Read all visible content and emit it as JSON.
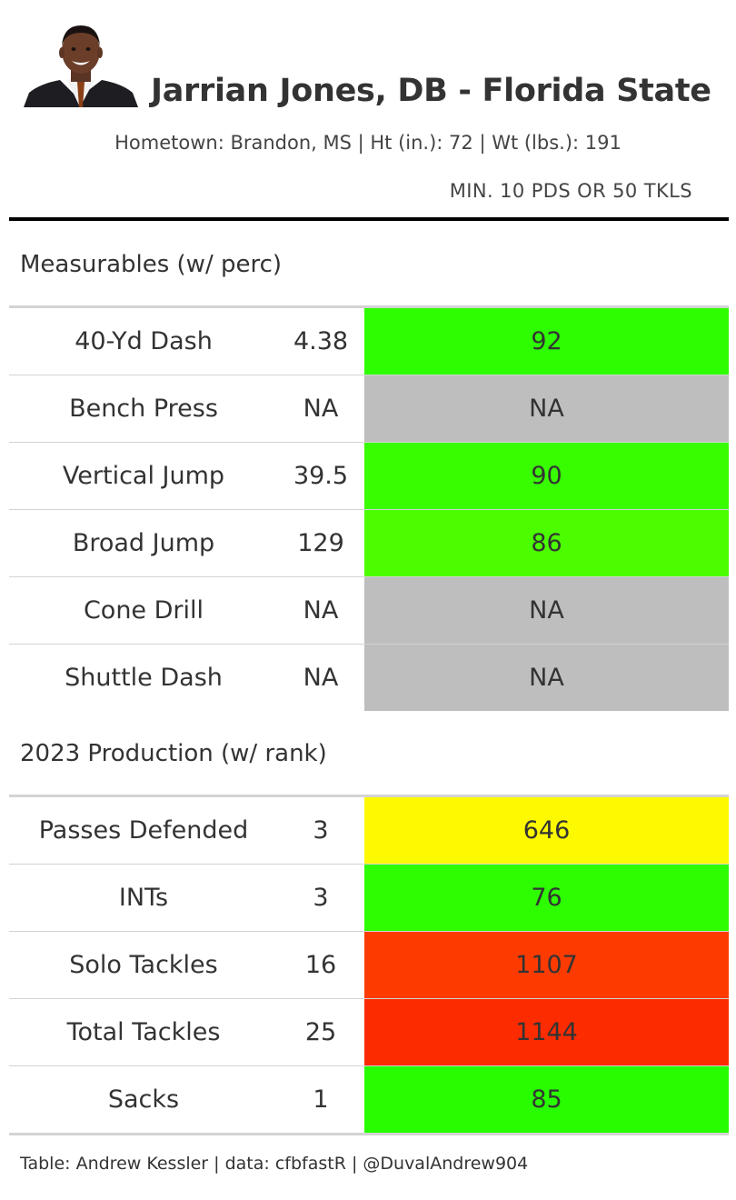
{
  "player": {
    "title": "Jarrian Jones, DB - Florida State",
    "subtitle": "Hometown: Brandon, MS | Ht (in.): 72 | Wt (lbs.): 191",
    "filter_note": "MIN. 10 PDS OR 50 TKLS",
    "photo_icon": "player-headshot"
  },
  "measurables": {
    "label": "Measurables (w/ perc)",
    "rows": [
      {
        "label": "40-Yd Dash",
        "value": "4.38",
        "metric": "92",
        "color": "#2dfd00"
      },
      {
        "label": "Bench Press",
        "value": "NA",
        "metric": "NA",
        "color": "#bebebe"
      },
      {
        "label": "Vertical Jump",
        "value": "39.5",
        "metric": "90",
        "color": "#38fd00"
      },
      {
        "label": "Broad Jump",
        "value": "129",
        "metric": "86",
        "color": "#4cfd00"
      },
      {
        "label": "Cone Drill",
        "value": "NA",
        "metric": "NA",
        "color": "#bebebe"
      },
      {
        "label": "Shuttle Dash",
        "value": "NA",
        "metric": "NA",
        "color": "#bebebe"
      }
    ]
  },
  "production": {
    "label": "2023 Production (w/ rank)",
    "rows": [
      {
        "label": "Passes Defended",
        "value": "3",
        "metric": "646",
        "color": "#fcf900"
      },
      {
        "label": "INTs",
        "value": "3",
        "metric": "76",
        "color": "#2dfd00"
      },
      {
        "label": "Solo Tackles",
        "value": "16",
        "metric": "1107",
        "color": "#fd3b00"
      },
      {
        "label": "Total Tackles",
        "value": "25",
        "metric": "1144",
        "color": "#fd2c00"
      },
      {
        "label": "Sacks",
        "value": "1",
        "metric": "85",
        "color": "#28fd00"
      }
    ]
  },
  "footer": "Table: Andrew Kessler | data: cfbfastR | @DuvalAndrew904"
}
